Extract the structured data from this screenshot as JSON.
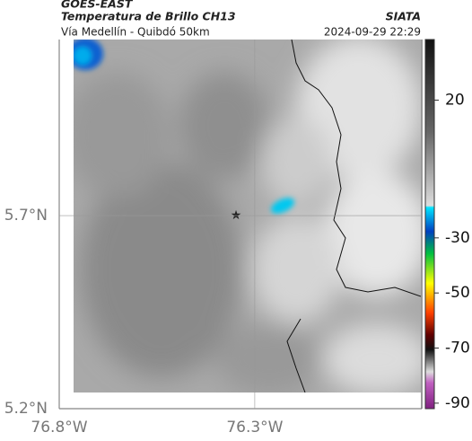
{
  "header": {
    "source": "GOES-EAST",
    "product": "Temperatura de Brillo CH13",
    "organization": "SIATA",
    "route": "Vía Medellín - Quibdó 50km",
    "datetime": "2024-09-29 22:29"
  },
  "map": {
    "xlim": [
      -76.8,
      -75.873
    ],
    "ylim": [
      5.2,
      6.156
    ],
    "xticks": [
      {
        "value": -76.8,
        "label": "76.8°W"
      },
      {
        "value": -76.3,
        "label": "76.3°W"
      }
    ],
    "yticks": [
      {
        "value": 5.7,
        "label": "5.7°N"
      },
      {
        "value": 5.2,
        "label": "5.2°N"
      }
    ]
  },
  "colorbar": {
    "lim": [
      42,
      -92
    ],
    "ticks": [
      20,
      -30,
      -50,
      -70,
      -90
    ]
  }
}
